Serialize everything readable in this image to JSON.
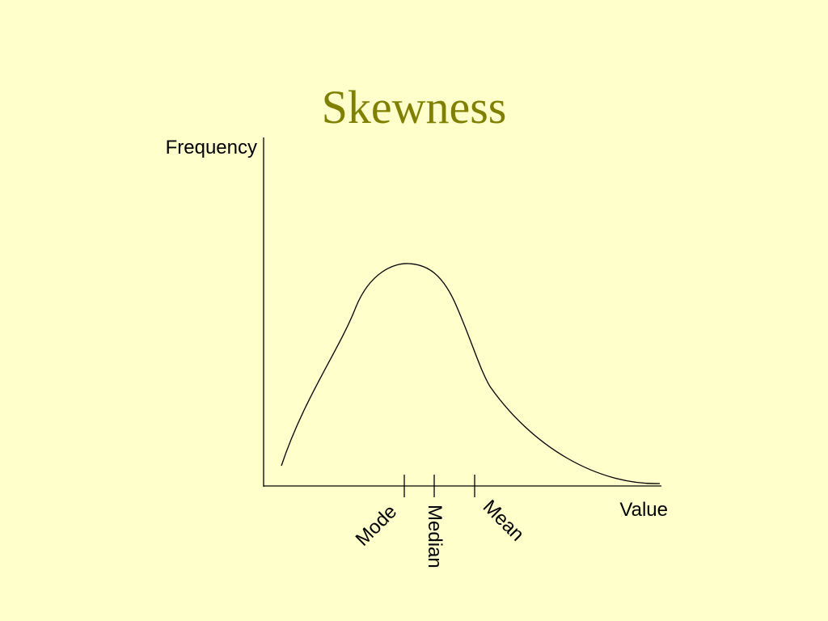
{
  "slide": {
    "title": "Skewness",
    "background_color": "#ffffcc",
    "title_color": "#808000"
  },
  "diagram": {
    "y_axis_label": "Frequency",
    "x_axis_label": "Value",
    "curve": "right-skewed distribution",
    "markers": [
      {
        "label": "Mode"
      },
      {
        "label": "Median"
      },
      {
        "label": "Mean"
      }
    ]
  }
}
